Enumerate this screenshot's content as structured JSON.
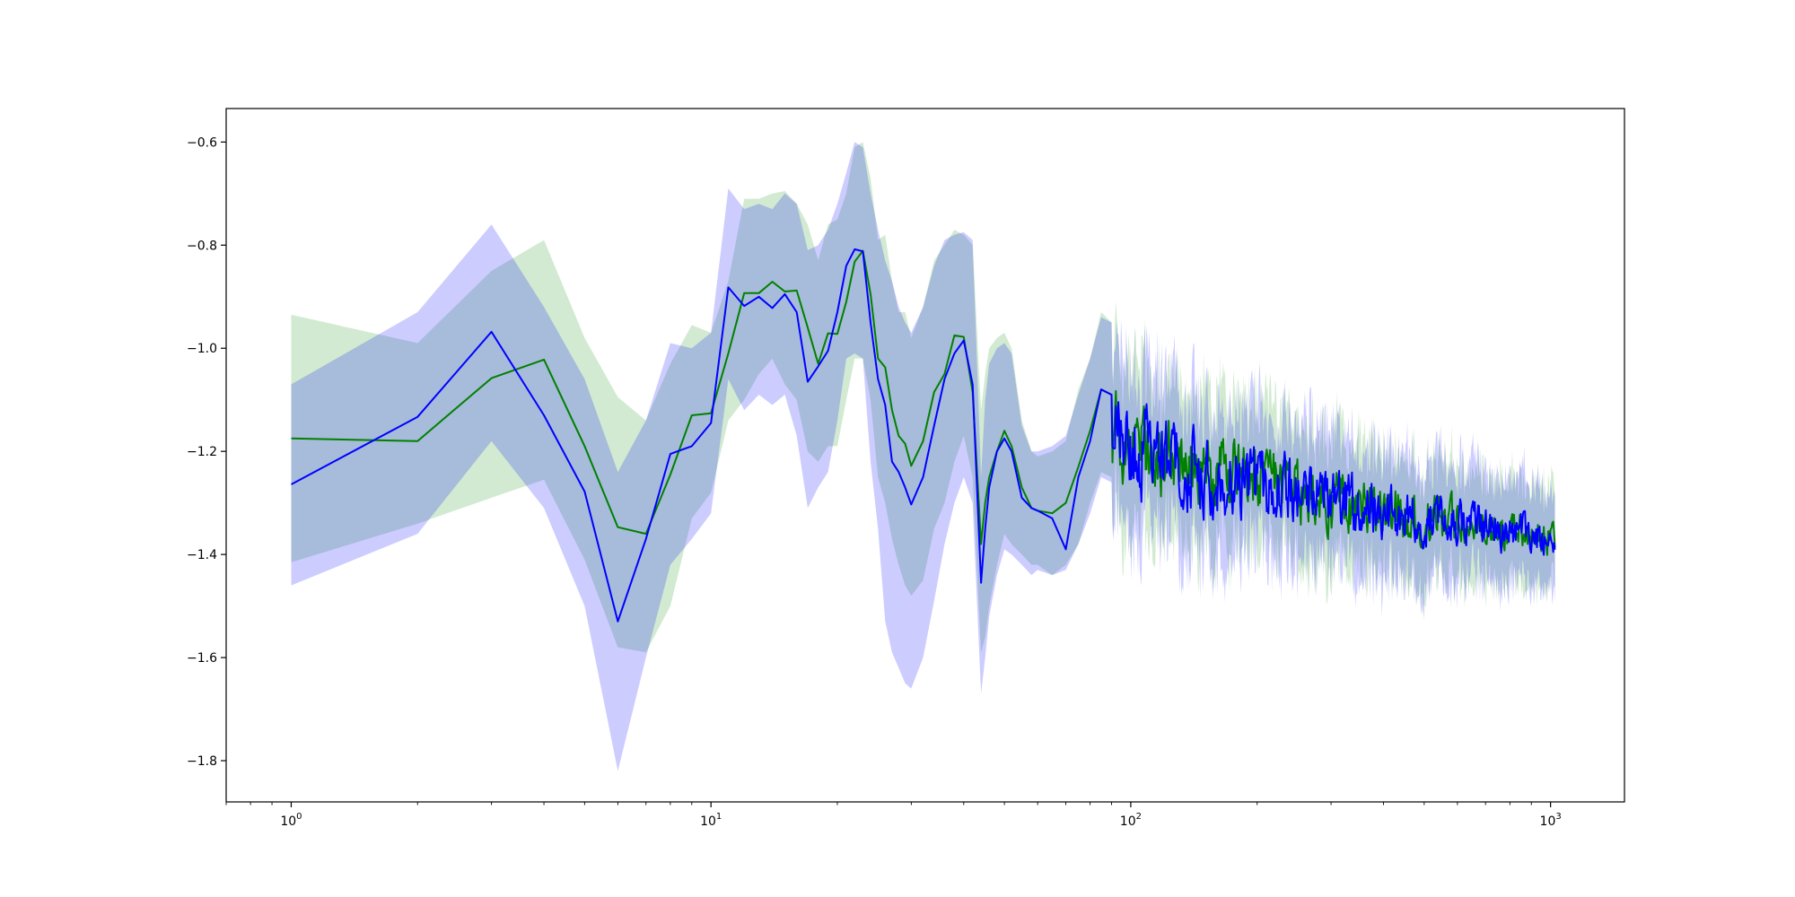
{
  "chart_data": {
    "type": "line",
    "x_scale": "log",
    "xlim": [
      0.7,
      1500
    ],
    "ylim": [
      -1.88,
      -0.535
    ],
    "legend": "none",
    "grid": false,
    "x_ticks": [
      {
        "value": 1,
        "base": "10",
        "exp": "0"
      },
      {
        "value": 10,
        "base": "10",
        "exp": "1"
      },
      {
        "value": 100,
        "base": "10",
        "exp": "2"
      },
      {
        "value": 1000,
        "base": "10",
        "exp": "3"
      }
    ],
    "y_ticks": [
      {
        "value": -0.6,
        "label": "−0.6"
      },
      {
        "value": -0.8,
        "label": "−0.8"
      },
      {
        "value": -1.0,
        "label": "−1.0"
      },
      {
        "value": -1.2,
        "label": "−1.2"
      },
      {
        "value": -1.4,
        "label": "−1.4"
      },
      {
        "value": -1.6,
        "label": "−1.6"
      },
      {
        "value": -1.8,
        "label": "−1.8"
      }
    ],
    "series": [
      {
        "color": "#008000",
        "band_color": "#2ca02c",
        "band_opacity": 0.22,
        "x": [
          1,
          2,
          3,
          4,
          5,
          6,
          7,
          8,
          9,
          10,
          11,
          12,
          13,
          14,
          15,
          16,
          17,
          18,
          19,
          20,
          21,
          22,
          23,
          24,
          25,
          26,
          27,
          28,
          29,
          30,
          32,
          34,
          36,
          38,
          40,
          42,
          44,
          45,
          46,
          48,
          50,
          52,
          55,
          58,
          60,
          65,
          70,
          75,
          80,
          85,
          90
        ],
        "y": [
          -1.175,
          -1.18,
          -1.058,
          -1.022,
          -1.19,
          -1.347,
          -1.36,
          -1.245,
          -1.13,
          -1.126,
          -1.01,
          -0.893,
          -0.893,
          -0.871,
          -0.89,
          -0.888,
          -0.96,
          -1.03,
          -0.971,
          -0.972,
          -0.91,
          -0.832,
          -0.811,
          -0.895,
          -1.02,
          -1.037,
          -1.12,
          -1.17,
          -1.185,
          -1.228,
          -1.18,
          -1.085,
          -1.05,
          -0.975,
          -0.978,
          -1.085,
          -1.38,
          -1.3,
          -1.25,
          -1.2,
          -1.16,
          -1.19,
          -1.27,
          -1.31,
          -1.315,
          -1.32,
          -1.3,
          -1.23,
          -1.16,
          -1.08,
          -1.09
        ],
        "lower": [
          -1.415,
          -1.34,
          -1.29,
          -1.255,
          -1.41,
          -1.58,
          -1.59,
          -1.5,
          -1.33,
          -1.28,
          -1.14,
          -1.1,
          -1.05,
          -1.02,
          -1.07,
          -1.1,
          -1.2,
          -1.22,
          -1.19,
          -1.19,
          -1.1,
          -1.02,
          -1.02,
          -1.1,
          -1.25,
          -1.3,
          -1.37,
          -1.42,
          -1.46,
          -1.48,
          -1.45,
          -1.35,
          -1.3,
          -1.22,
          -1.17,
          -1.25,
          -1.59,
          -1.56,
          -1.5,
          -1.42,
          -1.36,
          -1.38,
          -1.4,
          -1.42,
          -1.42,
          -1.44,
          -1.42,
          -1.38,
          -1.3,
          -1.24,
          -1.25
        ],
        "upper": [
          -0.935,
          -0.99,
          -0.85,
          -0.79,
          -0.98,
          -1.095,
          -1.14,
          -1.03,
          -0.955,
          -0.97,
          -0.87,
          -0.71,
          -0.71,
          -0.7,
          -0.695,
          -0.72,
          -0.76,
          -0.83,
          -0.76,
          -0.75,
          -0.7,
          -0.61,
          -0.6,
          -0.67,
          -0.79,
          -0.78,
          -0.87,
          -0.93,
          -0.93,
          -0.98,
          -0.92,
          -0.83,
          -0.8,
          -0.77,
          -0.78,
          -0.8,
          -1.12,
          -1.05,
          -1.0,
          -0.98,
          -0.97,
          -1.0,
          -1.14,
          -1.2,
          -1.21,
          -1.2,
          -1.18,
          -1.08,
          -1.02,
          -0.93,
          -0.95
        ],
        "tail": {
          "x_start": 90,
          "x_end": 1024,
          "points": 520,
          "mean_start": -1.15,
          "mean_end": -1.37,
          "noise_start": 0.09,
          "noise_end": 0.035,
          "band_start": 0.15,
          "band_end": 0.09
        }
      },
      {
        "color": "#0000ff",
        "band_color": "#0000ff",
        "band_opacity": 0.2,
        "x": [
          1,
          2,
          3,
          4,
          5,
          6,
          7,
          8,
          9,
          10,
          11,
          12,
          13,
          14,
          15,
          16,
          17,
          18,
          19,
          20,
          21,
          22,
          23,
          24,
          25,
          26,
          27,
          28,
          29,
          30,
          32,
          34,
          36,
          38,
          40,
          42,
          44,
          45,
          46,
          48,
          50,
          52,
          55,
          58,
          60,
          65,
          70,
          75,
          80,
          85,
          90
        ],
        "y": [
          -1.264,
          -1.133,
          -0.968,
          -1.13,
          -1.278,
          -1.53,
          -1.37,
          -1.205,
          -1.19,
          -1.145,
          -0.882,
          -0.918,
          -0.9,
          -0.922,
          -0.895,
          -0.93,
          -1.065,
          -1.035,
          -1.005,
          -0.93,
          -0.84,
          -0.808,
          -0.812,
          -0.95,
          -1.06,
          -1.11,
          -1.22,
          -1.24,
          -1.27,
          -1.303,
          -1.25,
          -1.15,
          -1.06,
          -1.01,
          -0.985,
          -1.07,
          -1.455,
          -1.35,
          -1.27,
          -1.2,
          -1.175,
          -1.2,
          -1.29,
          -1.31,
          -1.315,
          -1.33,
          -1.39,
          -1.25,
          -1.18,
          -1.08,
          -1.09
        ],
        "lower": [
          -1.46,
          -1.36,
          -1.18,
          -1.31,
          -1.5,
          -1.82,
          -1.6,
          -1.42,
          -1.37,
          -1.32,
          -1.06,
          -1.12,
          -1.09,
          -1.11,
          -1.09,
          -1.17,
          -1.31,
          -1.27,
          -1.24,
          -1.14,
          -1.02,
          -1.01,
          -1.02,
          -1.22,
          -1.35,
          -1.53,
          -1.59,
          -1.62,
          -1.65,
          -1.66,
          -1.6,
          -1.49,
          -1.38,
          -1.3,
          -1.25,
          -1.3,
          -1.67,
          -1.6,
          -1.52,
          -1.44,
          -1.39,
          -1.4,
          -1.42,
          -1.44,
          -1.43,
          -1.44,
          -1.43,
          -1.38,
          -1.32,
          -1.25,
          -1.26
        ],
        "upper": [
          -1.07,
          -0.93,
          -0.76,
          -0.92,
          -1.06,
          -1.24,
          -1.14,
          -0.99,
          -1.0,
          -0.97,
          -0.69,
          -0.73,
          -0.72,
          -0.73,
          -0.7,
          -0.72,
          -0.81,
          -0.8,
          -0.77,
          -0.72,
          -0.66,
          -0.6,
          -0.61,
          -0.7,
          -0.77,
          -0.83,
          -0.87,
          -0.92,
          -0.95,
          -0.97,
          -0.92,
          -0.84,
          -0.79,
          -0.78,
          -0.775,
          -0.79,
          -1.25,
          -1.1,
          -1.03,
          -1.0,
          -0.99,
          -1.01,
          -1.15,
          -1.2,
          -1.2,
          -1.19,
          -1.17,
          -1.09,
          -1.02,
          -0.94,
          -0.95
        ],
        "tail": {
          "x_start": 90,
          "x_end": 1024,
          "points": 520,
          "mean_start": -1.16,
          "mean_end": -1.37,
          "noise_start": 0.095,
          "noise_end": 0.035,
          "band_start": 0.15,
          "band_end": 0.09
        }
      }
    ]
  }
}
